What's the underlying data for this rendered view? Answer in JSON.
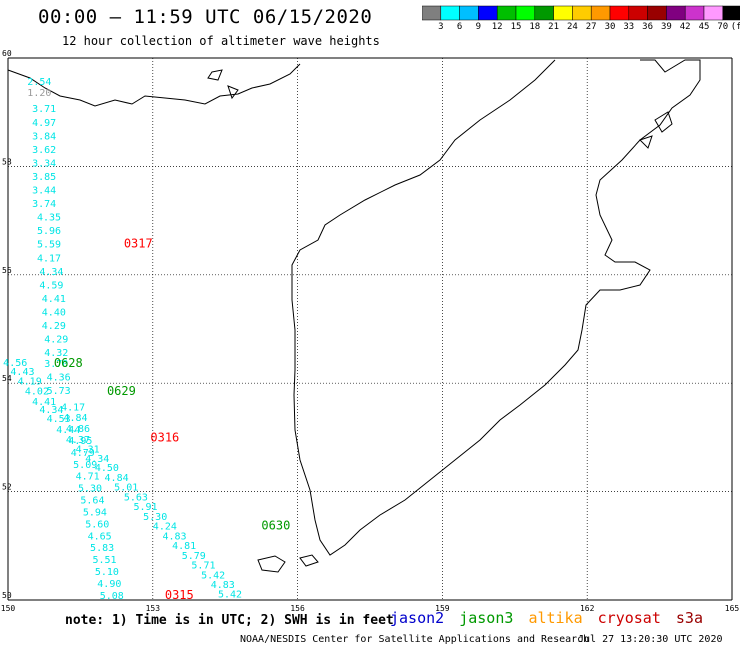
{
  "title": "00:00 – 11:59 UTC 06/15/2020",
  "subtitle": "12 hour collection of altimeter wave heights",
  "colorbar": {
    "colors": [
      "#7f7f7f",
      "#00ffff",
      "#00bfff",
      "#0000ff",
      "#00bf00",
      "#00ff00",
      "#009900",
      "#ffff00",
      "#ffcc00",
      "#ff9900",
      "#ff0000",
      "#cc0000",
      "#990000",
      "#800080",
      "#cc33cc",
      "#ff99ff",
      "#000000"
    ],
    "labels": [
      "3",
      "6",
      "9",
      "12",
      "15",
      "18",
      "21",
      "24",
      "27",
      "30",
      "33",
      "36",
      "39",
      "42",
      "45",
      "70",
      "(ft)"
    ]
  },
  "axes": {
    "lat_ticks": [
      "60",
      "58",
      "56",
      "54",
      "52",
      "50"
    ],
    "lon_ticks": [
      "150",
      "153",
      "156",
      "159",
      "162",
      "165"
    ]
  },
  "tracks": [
    {
      "color": "#00e5e5",
      "points": [
        {
          "lat": 59.5,
          "lon": 150.4,
          "v": "2.54"
        },
        {
          "lat": 59.3,
          "lon": 150.4,
          "v": "1.20",
          "color": "#999999"
        },
        {
          "lat": 59.0,
          "lon": 150.5,
          "v": "3.71"
        },
        {
          "lat": 58.75,
          "lon": 150.5,
          "v": "4.97"
        },
        {
          "lat": 58.5,
          "lon": 150.5,
          "v": "3.84"
        },
        {
          "lat": 58.25,
          "lon": 150.5,
          "v": "3.62"
        },
        {
          "lat": 58.0,
          "lon": 150.5,
          "v": "3.34"
        },
        {
          "lat": 57.75,
          "lon": 150.5,
          "v": "3.85"
        },
        {
          "lat": 57.5,
          "lon": 150.5,
          "v": "3.44"
        },
        {
          "lat": 57.25,
          "lon": 150.5,
          "v": "3.74"
        },
        {
          "lat": 57.0,
          "lon": 150.6,
          "v": "4.35"
        },
        {
          "lat": 56.75,
          "lon": 150.6,
          "v": "5.96"
        },
        {
          "lat": 56.5,
          "lon": 150.6,
          "v": "5.59"
        },
        {
          "lat": 56.25,
          "lon": 150.6,
          "v": "4.17"
        },
        {
          "lat": 56.0,
          "lon": 150.65,
          "v": "4.34"
        },
        {
          "lat": 55.75,
          "lon": 150.65,
          "v": "4.59"
        },
        {
          "lat": 55.5,
          "lon": 150.7,
          "v": "4.41"
        },
        {
          "lat": 55.25,
          "lon": 150.7,
          "v": "4.40"
        },
        {
          "lat": 55.0,
          "lon": 150.7,
          "v": "4.29"
        },
        {
          "lat": 54.75,
          "lon": 150.75,
          "v": "4.29"
        },
        {
          "lat": 54.5,
          "lon": 150.75,
          "v": "4.32"
        },
        {
          "lat": 54.3,
          "lon": 150.75,
          "v": "3.70"
        },
        {
          "lat": 54.05,
          "lon": 150.8,
          "v": "4.36"
        },
        {
          "lat": 53.8,
          "lon": 150.8,
          "v": "5.73"
        }
      ]
    },
    {
      "color": "#00e5e5",
      "points": [
        {
          "lat": 54.32,
          "lon": 149.9,
          "v": "4.56"
        },
        {
          "lat": 54.15,
          "lon": 150.05,
          "v": "4.43"
        },
        {
          "lat": 53.98,
          "lon": 150.2,
          "v": "4.19"
        },
        {
          "lat": 53.79,
          "lon": 150.35,
          "v": "4.02"
        },
        {
          "lat": 53.6,
          "lon": 150.5,
          "v": "4.41"
        },
        {
          "lat": 53.45,
          "lon": 150.65,
          "v": "4.34"
        },
        {
          "lat": 53.28,
          "lon": 150.8,
          "v": "4.53"
        },
        {
          "lat": 53.08,
          "lon": 151.0,
          "v": "4.44"
        },
        {
          "lat": 52.9,
          "lon": 151.2,
          "v": "4.37"
        },
        {
          "lat": 52.72,
          "lon": 151.4,
          "v": "4.31"
        },
        {
          "lat": 52.55,
          "lon": 151.6,
          "v": "4.34"
        },
        {
          "lat": 52.38,
          "lon": 151.8,
          "v": "4.50"
        },
        {
          "lat": 52.2,
          "lon": 152.0,
          "v": "4.84"
        },
        {
          "lat": 52.02,
          "lon": 152.2,
          "v": "5.01"
        },
        {
          "lat": 51.84,
          "lon": 152.4,
          "v": "5.63"
        },
        {
          "lat": 51.66,
          "lon": 152.6,
          "v": "5.91"
        },
        {
          "lat": 51.48,
          "lon": 152.8,
          "v": "5.30"
        },
        {
          "lat": 51.3,
          "lon": 153.0,
          "v": "4.24"
        },
        {
          "lat": 51.12,
          "lon": 153.2,
          "v": "4.83"
        },
        {
          "lat": 50.94,
          "lon": 153.4,
          "v": "4.81"
        },
        {
          "lat": 50.76,
          "lon": 153.6,
          "v": "5.79"
        },
        {
          "lat": 50.58,
          "lon": 153.8,
          "v": "5.71"
        },
        {
          "lat": 50.4,
          "lon": 154.0,
          "v": "5.42"
        },
        {
          "lat": 50.22,
          "lon": 154.2,
          "v": "4.83"
        },
        {
          "lat": 50.05,
          "lon": 154.35,
          "v": "5.42"
        }
      ]
    },
    {
      "color": "#00e5e5",
      "points": [
        {
          "lat": 53.5,
          "lon": 151.1,
          "v": "4.17"
        },
        {
          "lat": 53.3,
          "lon": 151.15,
          "v": "4.84"
        },
        {
          "lat": 53.1,
          "lon": 151.2,
          "v": "4.86"
        },
        {
          "lat": 52.88,
          "lon": 151.25,
          "v": "4.95"
        },
        {
          "lat": 52.66,
          "lon": 151.3,
          "v": "4.79"
        },
        {
          "lat": 52.44,
          "lon": 151.35,
          "v": "5.09"
        },
        {
          "lat": 52.22,
          "lon": 151.4,
          "v": "4.71"
        },
        {
          "lat": 52.0,
          "lon": 151.45,
          "v": "5.30"
        },
        {
          "lat": 51.78,
          "lon": 151.5,
          "v": "5.64"
        },
        {
          "lat": 51.56,
          "lon": 151.55,
          "v": "5.94"
        },
        {
          "lat": 51.34,
          "lon": 151.6,
          "v": "5.60"
        },
        {
          "lat": 51.12,
          "lon": 151.65,
          "v": "4.65"
        },
        {
          "lat": 50.9,
          "lon": 151.7,
          "v": "5.83"
        },
        {
          "lat": 50.68,
          "lon": 151.75,
          "v": "5.51"
        },
        {
          "lat": 50.46,
          "lon": 151.8,
          "v": "5.10"
        },
        {
          "lat": 50.24,
          "lon": 151.85,
          "v": "4.90"
        },
        {
          "lat": 50.02,
          "lon": 151.9,
          "v": "5.08"
        }
      ]
    }
  ],
  "time_labels": [
    {
      "text": "0317",
      "color": "#ff0000",
      "lat": 56.5,
      "lon": 152.4
    },
    {
      "text": "0628",
      "color": "#009900",
      "lat": 54.3,
      "lon": 150.95
    },
    {
      "text": "0629",
      "color": "#009900",
      "lat": 53.78,
      "lon": 152.05
    },
    {
      "text": "0316",
      "color": "#ff0000",
      "lat": 52.92,
      "lon": 152.95
    },
    {
      "text": "0630",
      "color": "#009900",
      "lat": 51.3,
      "lon": 155.25
    },
    {
      "text": "0315",
      "color": "#ff0000",
      "lat": 50.02,
      "lon": 153.25
    }
  ],
  "note": "note:  1) Time is in UTC;  2) SWH is in feet",
  "legend": [
    {
      "text": "jason2",
      "color": "#0000cc"
    },
    {
      "text": "jason3",
      "color": "#009900"
    },
    {
      "text": "altika",
      "color": "#ff9900"
    },
    {
      "text": "cryosat",
      "color": "#cc0000"
    },
    {
      "text": "s3a",
      "color": "#990000"
    }
  ],
  "credit": "NOAA/NESDIS Center for Satellite Applications and Research",
  "timestamp": "Jul 27 13:20:30 UTC 2020"
}
